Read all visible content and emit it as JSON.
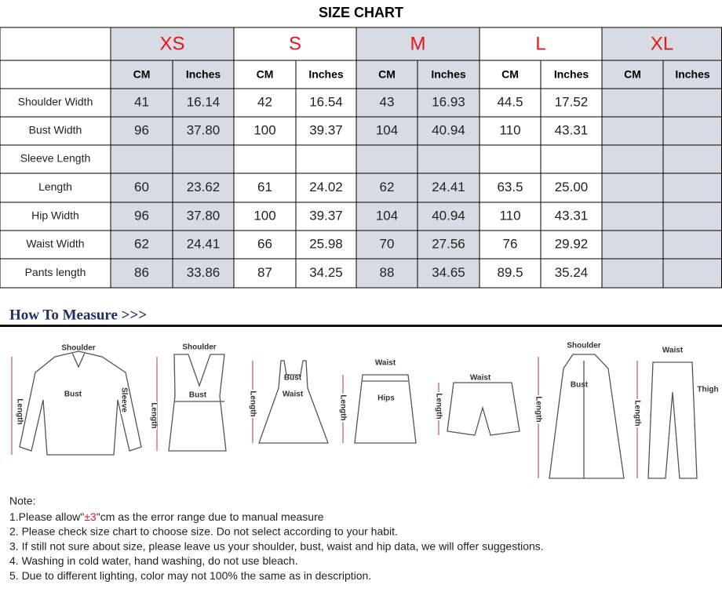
{
  "title": "SIZE CHART",
  "table": {
    "sizes": [
      "XS",
      "S",
      "M",
      "L",
      "XL"
    ],
    "units": [
      "CM",
      "Inches"
    ],
    "rows": [
      [
        "Shoulder Width",
        "41",
        "16.14",
        "42",
        "16.54",
        "43",
        "16.93",
        "44.5",
        "17.52",
        null,
        null
      ],
      [
        "Bust Width",
        "96",
        "37.80",
        "100",
        "39.37",
        "104",
        "40.94",
        "110",
        "43.31",
        null,
        null
      ],
      [
        "Sleeve Length",
        null,
        null,
        null,
        null,
        null,
        null,
        null,
        null,
        null,
        null
      ],
      [
        "Length",
        "60",
        "23.62",
        "61",
        "24.02",
        "62",
        "24.41",
        "63.5",
        "25.00",
        null,
        null
      ],
      [
        "Hip Width",
        "96",
        "37.80",
        "100",
        "39.37",
        "104",
        "40.94",
        "110",
        "43.31",
        null,
        null
      ],
      [
        "Waist Width",
        "62",
        "24.41",
        "66",
        "25.98",
        "70",
        "27.56",
        "76",
        "29.92",
        null,
        null
      ],
      [
        "Pants length",
        "86",
        "33.86",
        "87",
        "34.25",
        "88",
        "34.65",
        "89.5",
        "35.24",
        null,
        null
      ]
    ]
  },
  "how_to_measure": "How To Measure >>>",
  "figures": [
    {
      "labels": [
        "Shoulder",
        "Bust",
        "Sleeve",
        "Length"
      ]
    },
    {
      "labels": [
        "Shoulder",
        "Bust",
        "Length"
      ]
    },
    {
      "labels": [
        "Bust",
        "Waist",
        "Length"
      ]
    },
    {
      "labels": [
        "Waist",
        "Hips",
        "Length"
      ]
    },
    {
      "labels": [
        "Waist",
        "Length"
      ]
    },
    {
      "labels": [
        "Shoulder",
        "Bust",
        "Length"
      ]
    },
    {
      "labels": [
        "Waist",
        "Thigh",
        "Length"
      ]
    }
  ],
  "notes": {
    "heading": "Note:",
    "items": [
      [
        "1.Please allow\"",
        "±3",
        "\"cm as the error range due to manual measure"
      ],
      "2. Please check size chart to choose size. Do not select according to your habit.",
      "3. If still not sure about size, please leave us your shoulder, bust, waist and hip data, we will offer suggestions.",
      "4. Washing in cold water, hand washing, do not use bleach.",
      "5. Due to different lighting, color may not 100% the same as in description."
    ]
  }
}
